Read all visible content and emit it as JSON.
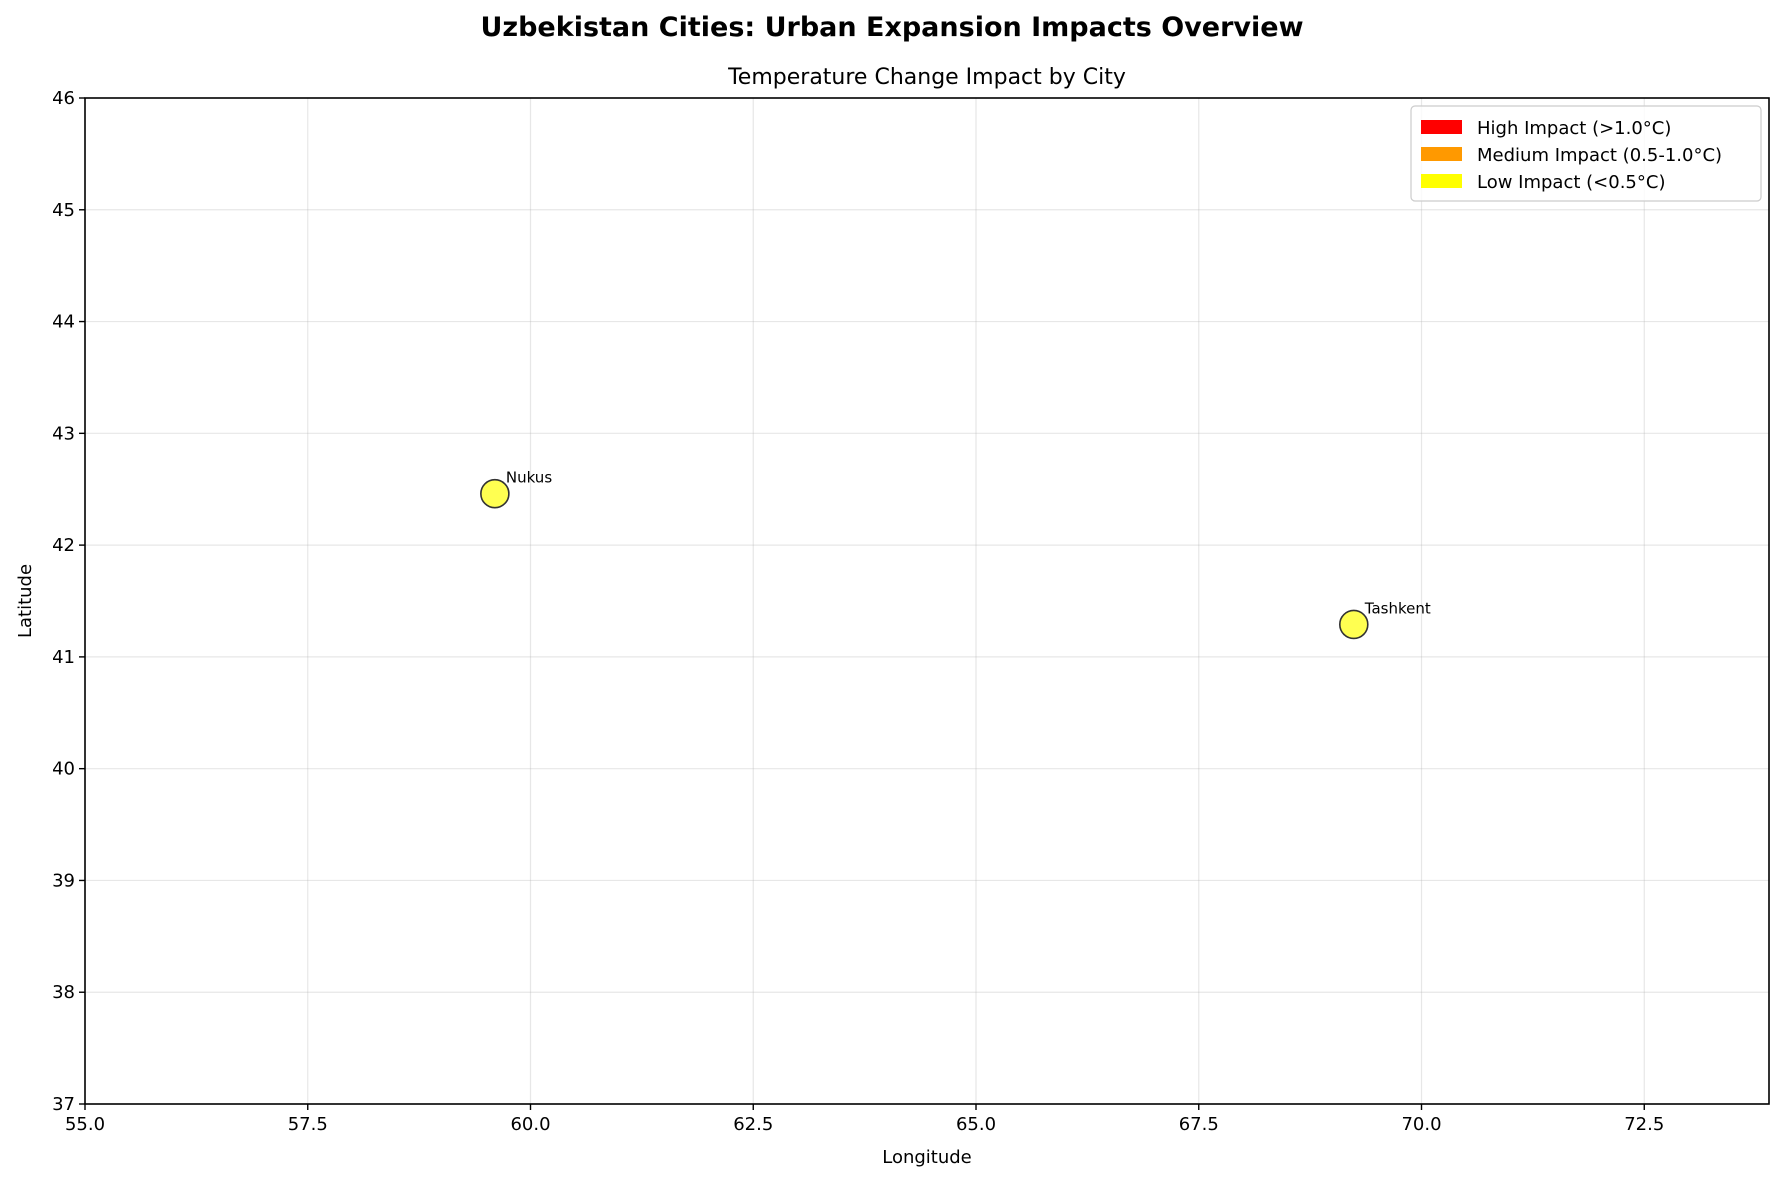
{
  "figure": {
    "suptitle": "Uzbekistan Cities: Urban Expansion Impacts Overview"
  },
  "chart_data": {
    "type": "scatter",
    "title": "Temperature Change Impact by City",
    "xlabel": "Longitude",
    "ylabel": "Latitude",
    "xlim": [
      55.0,
      73.9
    ],
    "ylim": [
      37,
      46
    ],
    "xticks": [
      "55.0",
      "57.5",
      "60.0",
      "62.5",
      "65.0",
      "67.5",
      "70.0",
      "72.5"
    ],
    "yticks": [
      "37",
      "38",
      "39",
      "40",
      "41",
      "42",
      "43",
      "44",
      "45",
      "46"
    ],
    "grid": true,
    "legend_position": "top-right",
    "legend": [
      {
        "label": "High Impact (>1.0°C)",
        "color": "#ff0000"
      },
      {
        "label": "Medium Impact (0.5-1.0°C)",
        "color": "#ff9900"
      },
      {
        "label": "Low Impact (<0.5°C)",
        "color": "#ffff00"
      }
    ],
    "points": [
      {
        "name": "Nukus",
        "x": 59.6,
        "y": 42.46,
        "impact": "low",
        "color": "#ffff33"
      },
      {
        "name": "Tashkent",
        "x": 69.24,
        "y": 41.29,
        "impact": "low",
        "color": "#ffff33"
      }
    ]
  }
}
